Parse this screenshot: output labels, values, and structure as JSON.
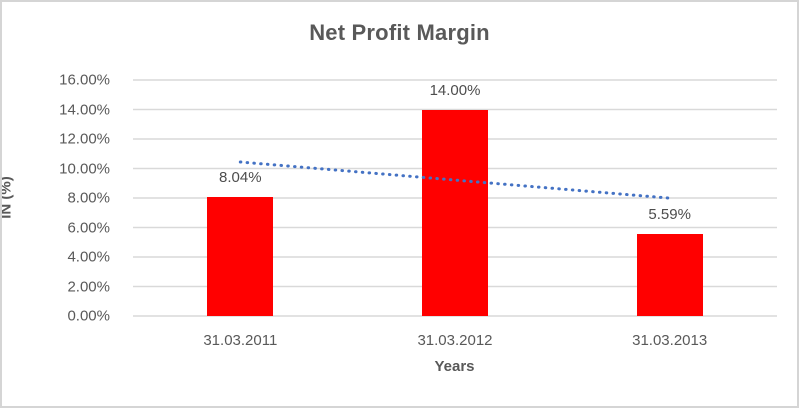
{
  "chart": {
    "title": "Net Profit Margin",
    "x_axis_title": "Years",
    "y_axis_title": "IN (%)"
  },
  "chart_data": {
    "type": "bar",
    "title": "Net Profit Margin",
    "xlabel": "Years",
    "ylabel": "IN (%)",
    "categories": [
      "31.03.2011",
      "31.03.2012",
      "31.03.2013"
    ],
    "values": [
      8.04,
      14.0,
      5.59
    ],
    "data_labels": [
      "8.04%",
      "14.00%",
      "5.59%"
    ],
    "ylim": [
      0,
      16
    ],
    "y_tick_step": 2,
    "y_tick_labels": [
      "0.00%",
      "2.00%",
      "4.00%",
      "6.00%",
      "8.00%",
      "10.00%",
      "12.00%",
      "14.00%",
      "16.00%"
    ],
    "grid": true,
    "legend": false,
    "bar_color": "#FF0000",
    "gridline_color": "#d9d9d9",
    "text_color": "#595959",
    "trendline": {
      "type": "linear",
      "style": "dotted",
      "color": "#4472C4",
      "start_value": 10.44,
      "end_value": 7.99
    }
  }
}
